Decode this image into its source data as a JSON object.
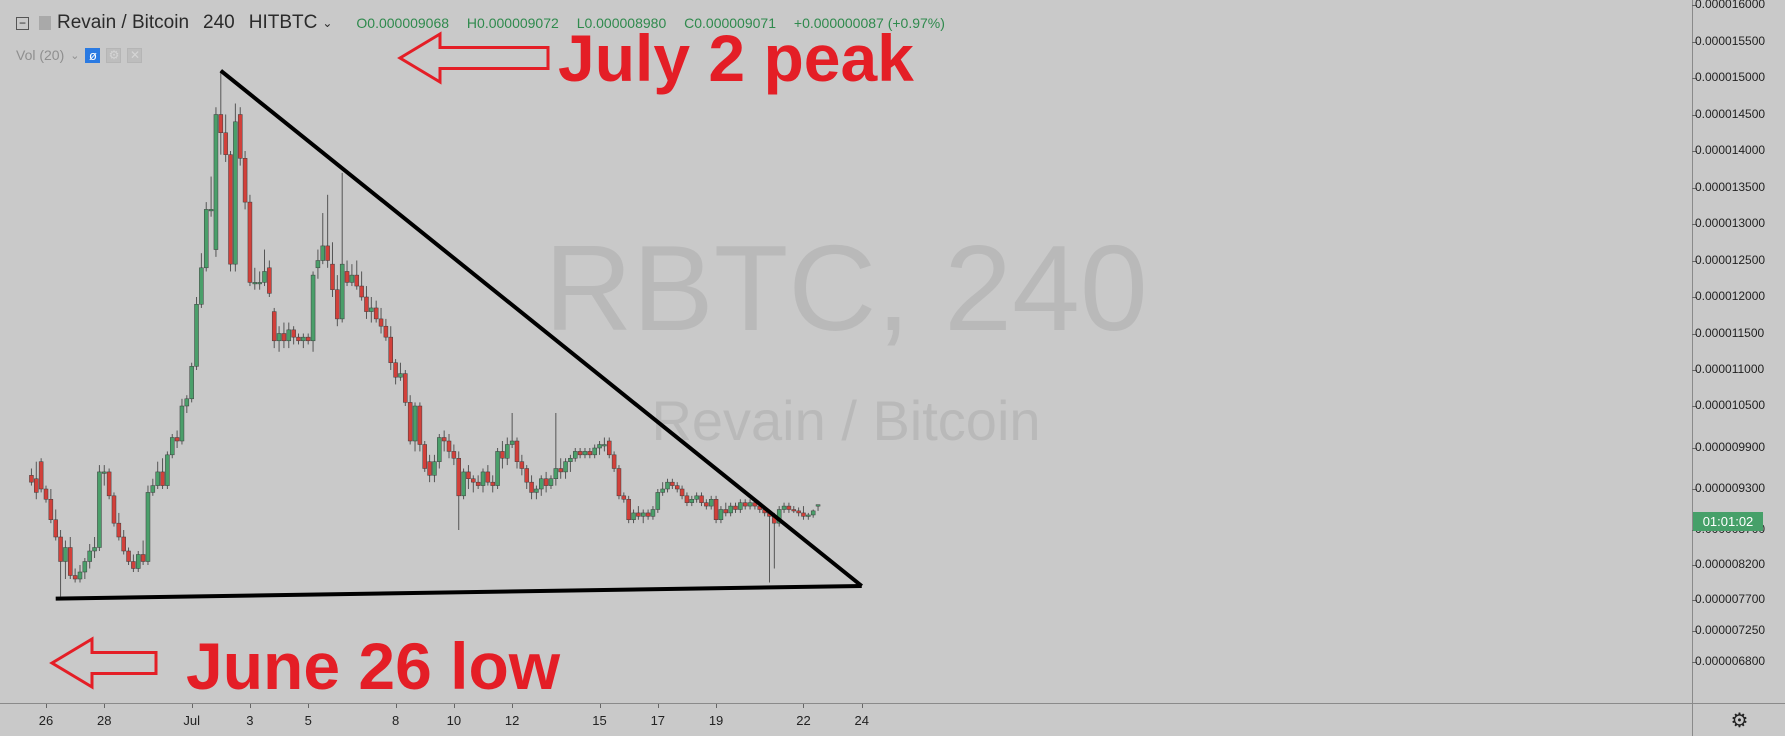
{
  "legend": {
    "collapse_symbol": "−",
    "symbol": "Revain / Bitcoin",
    "interval": "240",
    "exchange": "HITBTC",
    "open": "O0.000009068",
    "high": "H0.000009072",
    "low": "L0.000008980",
    "close": "C0.000009071",
    "change": "+0.000000087 (+0.97%)"
  },
  "volume": {
    "label": "Vol (20)",
    "eye_icon": "eye-slash-icon",
    "settings_icon": "settings-icon",
    "close_icon": "close-icon"
  },
  "watermark": {
    "line1": "RBTC, 240",
    "line2": "Revain / Bitcoin"
  },
  "annotations": {
    "peak": "July 2 peak",
    "low": "June 26 low"
  },
  "countdown": "01:01:02",
  "settings_icon": "gear-icon",
  "colors": {
    "up": "#4a9f6a",
    "down": "#d2403a",
    "text_red": "#e41e26",
    "price_tag": "#46a069"
  },
  "chart_data": {
    "type": "candlestick",
    "title": "Revain / Bitcoin",
    "ylim": [
      6.6e-07,
      1.61e-05
    ],
    "y_ticks": [
      "0.000016000",
      "0.000015500",
      "0.000015000",
      "0.000014500",
      "0.000014000",
      "0.000013500",
      "0.000013000",
      "0.000012500",
      "0.000012000",
      "0.000011500",
      "0.000011000",
      "0.000010500",
      "0.000009900",
      "0.000009300",
      "0.000008700",
      "0.000008200",
      "0.000007700",
      "0.000007250",
      "0.000006800"
    ],
    "x_ticks": [
      "26",
      "28",
      "Jul",
      "3",
      "5",
      "8",
      "10",
      "12",
      "15",
      "17",
      "19",
      "22",
      "24"
    ],
    "candles": [
      [
        "Jun 25 12:00",
        9.5e-06,
        9.6e-06,
        9.35e-06,
        9.4e-06
      ],
      [
        "Jun 25 16:00",
        9.45e-06,
        9.7e-06,
        9.15e-06,
        9.25e-06
      ],
      [
        "Jun 25 20:00",
        9.7e-06,
        9.75e-06,
        9.25e-06,
        9.3e-06
      ],
      [
        "Jun 26 00:00",
        9.3e-06,
        9.35e-06,
        9.1e-06,
        9.15e-06
      ],
      [
        "Jun 26 04:00",
        9.15e-06,
        9.3e-06,
        8.8e-06,
        8.85e-06
      ],
      [
        "Jun 26 08:00",
        8.85e-06,
        9e-06,
        8.55e-06,
        8.6e-06
      ],
      [
        "Jun 26 12:00",
        8.6e-06,
        8.7e-06,
        7.75e-06,
        8.25e-06
      ],
      [
        "Jun 26 16:00",
        8.25e-06,
        8.55e-06,
        8e-06,
        8.45e-06
      ],
      [
        "Jun 26 20:00",
        8.45e-06,
        8.6e-06,
        8e-06,
        8.05e-06
      ],
      [
        "Jun 27 00:00",
        8.05e-06,
        8.15e-06,
        7.95e-06,
        8e-06
      ],
      [
        "Jun 27 04:00",
        8e-06,
        8.2e-06,
        7.95e-06,
        8.1e-06
      ],
      [
        "Jun 27 08:00",
        8.1e-06,
        8.3e-06,
        8e-06,
        8.25e-06
      ],
      [
        "Jun 27 12:00",
        8.25e-06,
        8.5e-06,
        8.15e-06,
        8.4e-06
      ],
      [
        "Jun 27 16:00",
        8.4e-06,
        8.6e-06,
        8.3e-06,
        8.45e-06
      ],
      [
        "Jun 27 20:00",
        8.45e-06,
        9.65e-06,
        8.4e-06,
        9.55e-06
      ],
      [
        "Jun 28 00:00",
        9.55e-06,
        9.65e-06,
        9.35e-06,
        9.55e-06
      ],
      [
        "Jun 28 04:00",
        9.55e-06,
        9.6e-06,
        9.15e-06,
        9.2e-06
      ],
      [
        "Jun 28 08:00",
        9.2e-06,
        9.25e-06,
        8.75e-06,
        8.8e-06
      ],
      [
        "Jun 28 12:00",
        8.8e-06,
        8.95e-06,
        8.55e-06,
        8.6e-06
      ],
      [
        "Jun 28 16:00",
        8.6e-06,
        8.7e-06,
        8.35e-06,
        8.4e-06
      ],
      [
        "Jun 28 20:00",
        8.4e-06,
        8.45e-06,
        8.2e-06,
        8.25e-06
      ],
      [
        "Jun 29 00:00",
        8.25e-06,
        8.35e-06,
        8.1e-06,
        8.15e-06
      ],
      [
        "Jun 29 04:00",
        8.15e-06,
        8.4e-06,
        8.1e-06,
        8.35e-06
      ],
      [
        "Jun 29 08:00",
        8.35e-06,
        8.55e-06,
        8.2e-06,
        8.25e-06
      ],
      [
        "Jun 29 12:00",
        8.25e-06,
        9.35e-06,
        8.2e-06,
        9.25e-06
      ],
      [
        "Jun 29 16:00",
        9.25e-06,
        9.45e-06,
        9.2e-06,
        9.35e-06
      ],
      [
        "Jun 29 20:00",
        9.35e-06,
        9.7e-06,
        9.3e-06,
        9.55e-06
      ],
      [
        "Jun 30 00:00",
        9.55e-06,
        9.75e-06,
        9.3e-06,
        9.35e-06
      ],
      [
        "Jun 30 04:00",
        9.35e-06,
        9.85e-06,
        9.3e-06,
        9.8e-06
      ],
      [
        "Jun 30 08:00",
        9.8e-06,
        1.01e-05,
        9.75e-06,
        1.005e-05
      ],
      [
        "Jun 30 12:00",
        1.005e-05,
        1.015e-05,
        9.9e-06,
        1e-05
      ],
      [
        "Jun 30 16:00",
        1e-05,
        1.06e-05,
        9.95e-06,
        1.05e-05
      ],
      [
        "Jun 30 20:00",
        1.05e-05,
        1.065e-05,
        1.04e-05,
        1.06e-05
      ],
      [
        "Jul 1 00:00",
        1.06e-05,
        1.11e-05,
        1.055e-05,
        1.105e-05
      ],
      [
        "Jul 1 04:00",
        1.105e-05,
        1.2e-05,
        1.1e-05,
        1.19e-05
      ],
      [
        "Jul 1 08:00",
        1.19e-05,
        1.26e-05,
        1.185e-05,
        1.24e-05
      ],
      [
        "Jul 1 12:00",
        1.24e-05,
        1.33e-05,
        1.235e-05,
        1.32e-05
      ],
      [
        "Jul 1 16:00",
        1.32e-05,
        1.365e-05,
        1.31e-05,
        1.32e-05
      ],
      [
        "Jul 1 20:00",
        1.265e-05,
        1.46e-05,
        1.255e-05,
        1.45e-05
      ],
      [
        "Jul 2 00:00",
        1.45e-05,
        1.51e-05,
        1.395e-05,
        1.425e-05
      ],
      [
        "Jul 2 04:00",
        1.425e-05,
        1.45e-05,
        1.385e-05,
        1.395e-05
      ],
      [
        "Jul 2 08:00",
        1.395e-05,
        1.4e-05,
        1.235e-05,
        1.245e-05
      ],
      [
        "Jul 2 12:00",
        1.245e-05,
        1.465e-05,
        1.235e-05,
        1.44e-05
      ],
      [
        "Jul 2 16:00",
        1.45e-05,
        1.46e-05,
        1.38e-05,
        1.39e-05
      ],
      [
        "Jul 2 20:00",
        1.39e-05,
        1.4e-05,
        1.32e-05,
        1.33e-05
      ],
      [
        "Jul 3 00:00",
        1.33e-05,
        1.34e-05,
        1.215e-05,
        1.22e-05
      ],
      [
        "Jul 3 04:00",
        1.22e-05,
        1.24e-05,
        1.21e-05,
        1.22e-05
      ],
      [
        "Jul 3 08:00",
        1.22e-05,
        1.235e-05,
        1.21e-05,
        1.22e-05
      ],
      [
        "Jul 3 12:00",
        1.22e-05,
        1.265e-05,
        1.215e-05,
        1.235e-05
      ],
      [
        "Jul 3 16:00",
        1.24e-05,
        1.25e-05,
        1.2e-05,
        1.205e-05
      ],
      [
        "Jul 3 20:00",
        1.18e-05,
        1.185e-05,
        1.13e-05,
        1.14e-05
      ],
      [
        "Jul 4 00:00",
        1.14e-05,
        1.16e-05,
        1.125e-05,
        1.15e-05
      ],
      [
        "Jul 4 04:00",
        1.15e-05,
        1.165e-05,
        1.13e-05,
        1.14e-05
      ],
      [
        "Jul 4 08:00",
        1.14e-05,
        1.165e-05,
        1.13e-05,
        1.155e-05
      ],
      [
        "Jul 4 12:00",
        1.155e-05,
        1.16e-05,
        1.135e-05,
        1.145e-05
      ],
      [
        "Jul 4 16:00",
        1.145e-05,
        1.15e-05,
        1.135e-05,
        1.14e-05
      ],
      [
        "Jul 4 20:00",
        1.14e-05,
        1.15e-05,
        1.13e-05,
        1.145e-05
      ],
      [
        "Jul 5 00:00",
        1.145e-05,
        1.15e-05,
        1.135e-05,
        1.14e-05
      ],
      [
        "Jul 5 04:00",
        1.14e-05,
        1.235e-05,
        1.125e-05,
        1.23e-05
      ],
      [
        "Jul 5 08:00",
        1.24e-05,
        1.265e-05,
        1.225e-05,
        1.25e-05
      ],
      [
        "Jul 5 12:00",
        1.25e-05,
        1.315e-05,
        1.245e-05,
        1.27e-05
      ],
      [
        "Jul 5 16:00",
        1.27e-05,
        1.34e-05,
        1.24e-05,
        1.25e-05
      ],
      [
        "Jul 5 20:00",
        1.245e-05,
        1.275e-05,
        1.2e-05,
        1.21e-05
      ],
      [
        "Jul 6 00:00",
        1.21e-05,
        1.23e-05,
        1.16e-05,
        1.17e-05
      ],
      [
        "Jul 6 04:00",
        1.17e-05,
        1.37e-05,
        1.165e-05,
        1.245e-05
      ],
      [
        "Jul 6 08:00",
        1.235e-05,
        1.25e-05,
        1.215e-05,
        1.22e-05
      ],
      [
        "Jul 6 12:00",
        1.22e-05,
        1.245e-05,
        1.215e-05,
        1.23e-05
      ],
      [
        "Jul 6 16:00",
        1.23e-05,
        1.25e-05,
        1.21e-05,
        1.215e-05
      ],
      [
        "Jul 6 20:00",
        1.215e-05,
        1.235e-05,
        1.195e-05,
        1.2e-05
      ],
      [
        "Jul 7 00:00",
        1.2e-05,
        1.215e-05,
        1.17e-05,
        1.18e-05
      ],
      [
        "Jul 7 04:00",
        1.18e-05,
        1.2e-05,
        1.165e-05,
        1.185e-05
      ],
      [
        "Jul 7 08:00",
        1.185e-05,
        1.195e-05,
        1.165e-05,
        1.17e-05
      ],
      [
        "Jul 7 12:00",
        1.17e-05,
        1.185e-05,
        1.15e-05,
        1.16e-05
      ],
      [
        "Jul 7 16:00",
        1.16e-05,
        1.17e-05,
        1.14e-05,
        1.145e-05
      ],
      [
        "Jul 7 20:00",
        1.145e-05,
        1.16e-05,
        1.1e-05,
        1.11e-05
      ],
      [
        "Jul 8 00:00",
        1.11e-05,
        1.115e-05,
        1.08e-05,
        1.09e-05
      ],
      [
        "Jul 8 04:00",
        1.09e-05,
        1.11e-05,
        1.085e-05,
        1.095e-05
      ],
      [
        "Jul 8 08:00",
        1.095e-05,
        1.1e-05,
        1.05e-05,
        1.055e-05
      ],
      [
        "Jul 8 12:00",
        1.055e-05,
        1.065e-05,
        9.95e-06,
        1e-05
      ],
      [
        "Jul 8 16:00",
        1e-05,
        1.055e-05,
        9.85e-06,
        1.05e-05
      ],
      [
        "Jul 8 20:00",
        1.05e-05,
        1.055e-05,
        9.85e-06,
        9.95e-06
      ],
      [
        "Jul 9 00:00",
        9.95e-06,
        1e-05,
        9.55e-06,
        9.6e-06
      ],
      [
        "Jul 9 04:00",
        9.7e-06,
        9.8e-06,
        9.4e-06,
        9.5e-06
      ],
      [
        "Jul 9 08:00",
        9.5e-06,
        9.8e-06,
        9.4e-06,
        9.7e-06
      ],
      [
        "Jul 9 12:00",
        9.7e-06,
        1.01e-05,
        9.6e-06,
        1.005e-05
      ],
      [
        "Jul 9 16:00",
        1.005e-05,
        1.015e-05,
        9.85e-06,
        1e-05
      ],
      [
        "Jul 9 20:00",
        1e-05,
        1.01e-05,
        9.75e-06,
        9.85e-06
      ],
      [
        "Jul 10 00:00",
        9.85e-06,
        9.95e-06,
        9.65e-06,
        9.75e-06
      ],
      [
        "Jul 10 04:00",
        9.75e-06,
        9.85e-06,
        8.7e-06,
        9.2e-06
      ],
      [
        "Jul 10 08:00",
        9.2e-06,
        9.6e-06,
        9.15e-06,
        9.55e-06
      ],
      [
        "Jul 10 12:00",
        9.55e-06,
        9.65e-06,
        9.3e-06,
        9.45e-06
      ],
      [
        "Jul 10 16:00",
        9.45e-06,
        9.5e-06,
        9.25e-06,
        9.4e-06
      ],
      [
        "Jul 10 20:00",
        9.4e-06,
        9.5e-06,
        9.3e-06,
        9.35e-06
      ],
      [
        "Jul 11 00:00",
        9.35e-06,
        9.6e-06,
        9.25e-06,
        9.55e-06
      ],
      [
        "Jul 11 04:00",
        9.55e-06,
        9.65e-06,
        9.35e-06,
        9.4e-06
      ],
      [
        "Jul 11 08:00",
        9.4e-06,
        9.5e-06,
        9.25e-06,
        9.35e-06
      ],
      [
        "Jul 11 12:00",
        9.35e-06,
        9.9e-06,
        9.3e-06,
        9.85e-06
      ],
      [
        "Jul 11 16:00",
        9.85e-06,
        1e-05,
        9.6e-06,
        9.75e-06
      ],
      [
        "Jul 11 20:00",
        9.75e-06,
        1.005e-05,
        9.65e-06,
        9.95e-06
      ],
      [
        "Jul 12 00:00",
        9.95e-06,
        1.04e-05,
        9.9e-06,
        1e-05
      ],
      [
        "Jul 12 04:00",
        1e-05,
        1.005e-05,
        9.6e-06,
        9.7e-06
      ],
      [
        "Jul 12 08:00",
        9.7e-06,
        9.8e-06,
        9.5e-06,
        9.6e-06
      ],
      [
        "Jul 12 12:00",
        9.6e-06,
        9.65e-06,
        9.3e-06,
        9.4e-06
      ],
      [
        "Jul 12 16:00",
        9.4e-06,
        9.5e-06,
        9.15e-06,
        9.25e-06
      ],
      [
        "Jul 12 20:00",
        9.25e-06,
        9.35e-06,
        9.15e-06,
        9.3e-06
      ],
      [
        "Jul 13 00:00",
        9.3e-06,
        9.5e-06,
        9.2e-06,
        9.45e-06
      ],
      [
        "Jul 13 04:00",
        9.45e-06,
        9.55e-06,
        9.25e-06,
        9.35e-06
      ],
      [
        "Jul 13 08:00",
        9.35e-06,
        9.5e-06,
        9.3e-06,
        9.45e-06
      ],
      [
        "Jul 13 12:00",
        9.45e-06,
        1.04e-05,
        9.35e-06,
        9.6e-06
      ],
      [
        "Jul 13 16:00",
        9.6e-06,
        9.75e-06,
        9.45e-06,
        9.55e-06
      ],
      [
        "Jul 13 20:00",
        9.55e-06,
        9.75e-06,
        9.45e-06,
        9.7e-06
      ],
      [
        "Jul 14 00:00",
        9.7e-06,
        9.8e-06,
        9.55e-06,
        9.75e-06
      ],
      [
        "Jul 14 04:00",
        9.75e-06,
        9.9e-06,
        9.7e-06,
        9.85e-06
      ],
      [
        "Jul 14 08:00",
        9.85e-06,
        9.9e-06,
        9.75e-06,
        9.8e-06
      ],
      [
        "Jul 14 12:00",
        9.8e-06,
        9.9e-06,
        9.75e-06,
        9.85e-06
      ],
      [
        "Jul 14 16:00",
        9.85e-06,
        9.9e-06,
        9.75e-06,
        9.8e-06
      ],
      [
        "Jul 14 20:00",
        9.8e-06,
        9.95e-06,
        9.75e-06,
        9.9e-06
      ],
      [
        "Jul 15 00:00",
        9.9e-06,
        1e-05,
        9.8e-06,
        9.95e-06
      ],
      [
        "Jul 15 04:00",
        9.95e-06,
        1.005e-05,
        9.85e-06,
        9.95e-06
      ],
      [
        "Jul 15 08:00",
        1e-05,
        1.005e-05,
        9.75e-06,
        9.8e-06
      ],
      [
        "Jul 15 12:00",
        9.8e-06,
        9.85e-06,
        9.55e-06,
        9.6e-06
      ],
      [
        "Jul 15 16:00",
        9.6e-06,
        9.65e-06,
        9.15e-06,
        9.2e-06
      ],
      [
        "Jul 15 20:00",
        9.2e-06,
        9.25e-06,
        9.1e-06,
        9.15e-06
      ],
      [
        "Jul 16 00:00",
        9.15e-06,
        9.2e-06,
        8.8e-06,
        8.85e-06
      ],
      [
        "Jul 16 04:00",
        8.85e-06,
        9e-06,
        8.8e-06,
        8.95e-06
      ],
      [
        "Jul 16 08:00",
        8.95e-06,
        9.05e-06,
        8.85e-06,
        8.9e-06
      ],
      [
        "Jul 16 12:00",
        8.9e-06,
        9e-06,
        8.8e-06,
        8.95e-06
      ],
      [
        "Jul 16 16:00",
        8.95e-06,
        9e-06,
        8.85e-06,
        8.9e-06
      ],
      [
        "Jul 16 20:00",
        8.9e-06,
        9.05e-06,
        8.85e-06,
        9e-06
      ],
      [
        "Jul 17 00:00",
        9e-06,
        9.3e-06,
        8.95e-06,
        9.25e-06
      ],
      [
        "Jul 17 04:00",
        9.25e-06,
        9.4e-06,
        9.2e-06,
        9.3e-06
      ],
      [
        "Jul 17 08:00",
        9.3e-06,
        9.45e-06,
        9.25e-06,
        9.4e-06
      ],
      [
        "Jul 17 12:00",
        9.4e-06,
        9.45e-06,
        9.3e-06,
        9.35e-06
      ],
      [
        "Jul 17 16:00",
        9.35e-06,
        9.4e-06,
        9.25e-06,
        9.3e-06
      ],
      [
        "Jul 17 20:00",
        9.3e-06,
        9.35e-06,
        9.15e-06,
        9.2e-06
      ],
      [
        "Jul 18 00:00",
        9.2e-06,
        9.25e-06,
        9.05e-06,
        9.1e-06
      ],
      [
        "Jul 18 04:00",
        9.1e-06,
        9.2e-06,
        9.05e-06,
        9.15e-06
      ],
      [
        "Jul 18 08:00",
        9.15e-06,
        9.25e-06,
        9.1e-06,
        9.2e-06
      ],
      [
        "Jul 18 12:00",
        9.2e-06,
        9.25e-06,
        9.05e-06,
        9.1e-06
      ],
      [
        "Jul 18 16:00",
        9.1e-06,
        9.15e-06,
        9e-06,
        9.05e-06
      ],
      [
        "Jul 18 20:00",
        9.05e-06,
        9.2e-06,
        9e-06,
        9.15e-06
      ],
      [
        "Jul 19 00:00",
        9.15e-06,
        9.2e-06,
        8.8e-06,
        8.85e-06
      ],
      [
        "Jul 19 04:00",
        8.85e-06,
        9.05e-06,
        8.8e-06,
        9e-06
      ],
      [
        "Jul 19 08:00",
        9e-06,
        9.1e-06,
        8.9e-06,
        8.95e-06
      ],
      [
        "Jul 19 12:00",
        8.95e-06,
        9.1e-06,
        8.9e-06,
        9.05e-06
      ],
      [
        "Jul 19 16:00",
        9.05e-06,
        9.1e-06,
        8.95e-06,
        9e-06
      ],
      [
        "Jul 19 20:00",
        9e-06,
        9.15e-06,
        8.95e-06,
        9.1e-06
      ],
      [
        "Jul 20 00:00",
        9.1e-06,
        9.15e-06,
        9e-06,
        9.05e-06
      ],
      [
        "Jul 20 04:00",
        9.05e-06,
        9.15e-06,
        9e-06,
        9.1e-06
      ],
      [
        "Jul 20 08:00",
        9.1e-06,
        9.15e-06,
        9e-06,
        9.05e-06
      ],
      [
        "Jul 20 12:00",
        9.05e-06,
        9.1e-06,
        8.95e-06,
        9e-06
      ],
      [
        "Jul 20 16:00",
        9e-06,
        9.05e-06,
        8.9e-06,
        8.95e-06
      ],
      [
        "Jul 20 20:00",
        8.95e-06,
        9e-06,
        7.95e-06,
        8.9e-06
      ],
      [
        "Jul 21 00:00",
        8.9e-06,
        8.95e-06,
        8.15e-06,
        8.8e-06
      ],
      [
        "Jul 21 04:00",
        8.8e-06,
        9.05e-06,
        8.75e-06,
        9e-06
      ],
      [
        "Jul 21 08:00",
        9e-06,
        9.1e-06,
        8.95e-06,
        9.05e-06
      ],
      [
        "Jul 21 12:00",
        9.05e-06,
        9.1e-06,
        8.95e-06,
        9e-06
      ],
      [
        "Jul 21 16:00",
        9e-06,
        9.05e-06,
        8.95e-06,
        8.98e-06
      ],
      [
        "Jul 21 20:00",
        8.98e-06,
        9.03e-06,
        8.9e-06,
        8.95e-06
      ],
      [
        "Jul 22 00:00",
        8.95e-06,
        9.05e-06,
        8.85e-06,
        8.9e-06
      ],
      [
        "Jul 22 04:00",
        8.9e-06,
        8.95e-06,
        8.85e-06,
        8.92e-06
      ],
      [
        "Jul 22 08:00",
        8.92e-06,
        9e-06,
        8.88e-06,
        8.98e-06
      ],
      [
        "Jul 22 12:00",
        9.068e-06,
        9.072e-06,
        8.98e-06,
        9.071e-06
      ]
    ],
    "trendlines": [
      {
        "from": [
          "Jul 2 00:00",
          1.51e-05
        ],
        "to": [
          "Jul 24 00:00",
          7.9e-06
        ]
      },
      {
        "from": [
          "Jun 26 08:00",
          7.72e-06
        ],
        "to": [
          "Jul 24 00:00",
          7.9e-06
        ]
      }
    ]
  }
}
